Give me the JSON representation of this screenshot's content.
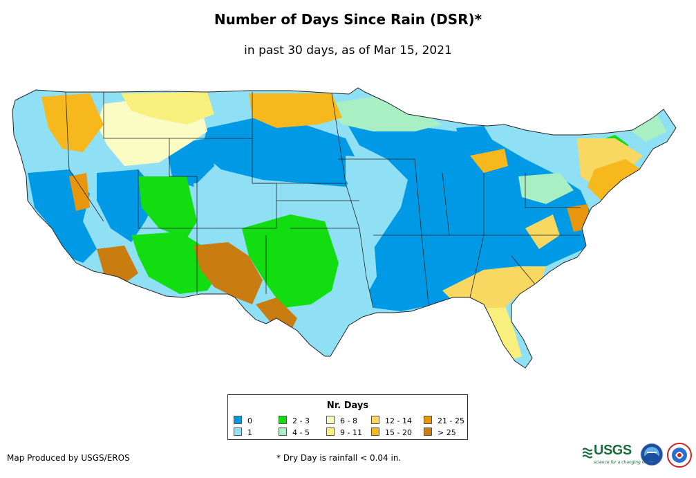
{
  "map": {
    "title": "Number of Days Since Rain (DSR)*",
    "subtitle": "in past 30 days, as of Mar 15, 2021",
    "legend": {
      "title": "Nr. Days",
      "items": [
        {
          "label": "0",
          "color": "#0099e6"
        },
        {
          "label": "1",
          "color": "#8fe0f5"
        },
        {
          "label": "2 - 3",
          "color": "#11dd11"
        },
        {
          "label": "4 - 5",
          "color": "#a8efc4"
        },
        {
          "label": "6 - 8",
          "color": "#fbfbc4"
        },
        {
          "label": "9 - 11",
          "color": "#f8ef7c"
        },
        {
          "label": "12 - 14",
          "color": "#f8d860"
        },
        {
          "label": "15 - 20",
          "color": "#f6b81c"
        },
        {
          "label": "21 - 25",
          "color": "#e8960e"
        },
        {
          "label": "> 25",
          "color": "#c97c10"
        }
      ]
    },
    "credit": "Map Produced by USGS/EROS",
    "footnote": "* Dry Day is rainfall < 0.04 in.",
    "logos": {
      "usgs": {
        "name": "usgs-logo",
        "text": "USGS",
        "tagline": "science for a changing world",
        "color": "#1a6b3a"
      },
      "noaa": {
        "name": "noaa-logo"
      },
      "nws": {
        "name": "nws-logo"
      }
    }
  }
}
